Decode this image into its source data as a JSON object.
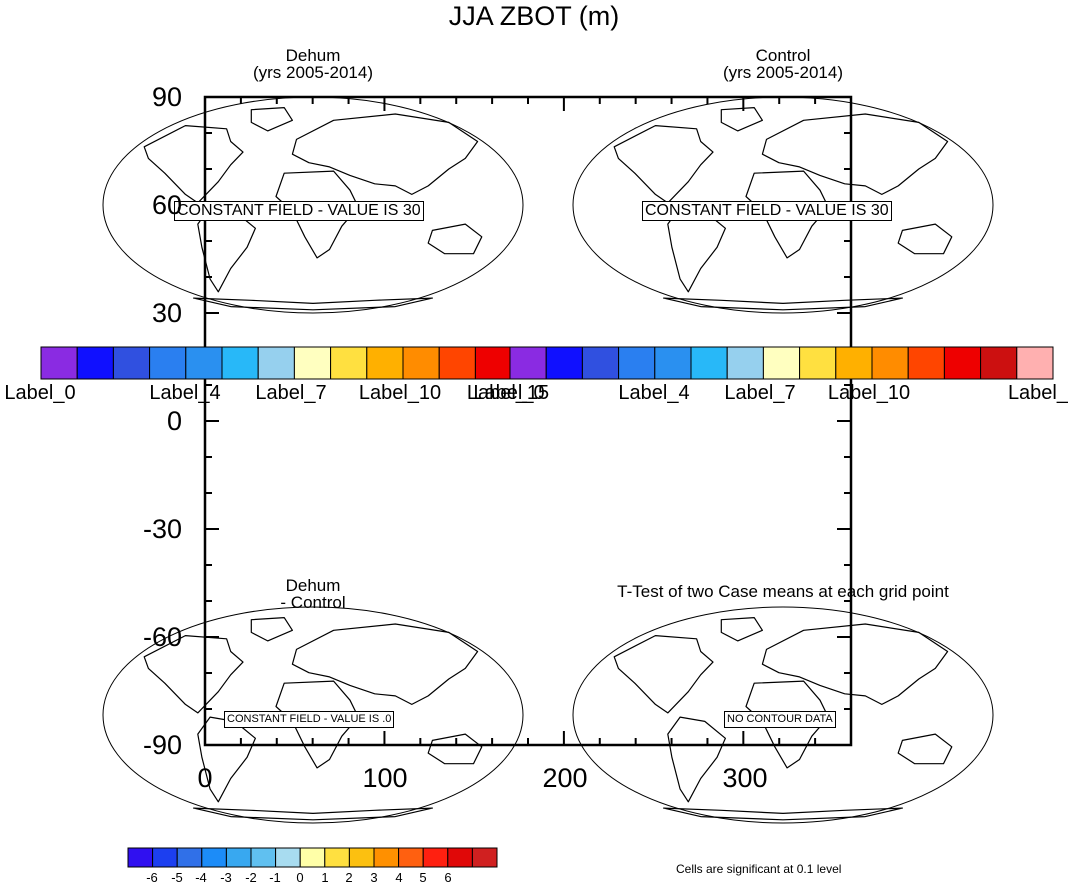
{
  "title": "JJA ZBOT (m)",
  "panels": [
    {
      "id": "dehum",
      "title_line1": "Dehum",
      "title_line2": "(yrs 2005-2014)",
      "message": "CONSTANT FIELD - VALUE IS 30",
      "cx": 313,
      "cy": 205
    },
    {
      "id": "control",
      "title_line1": "Control",
      "title_line2": "(yrs 2005-2014)",
      "message": "CONSTANT FIELD - VALUE IS 30",
      "cx": 783,
      "cy": 205
    },
    {
      "id": "difference",
      "title_line1": "Dehum",
      "title_line2": "- Control",
      "message": "CONSTANT FIELD - VALUE IS .0",
      "cx": 313,
      "cy": 715
    },
    {
      "id": "ttest",
      "title_line1": "T-Test of two Case means at each grid point",
      "title_line2": "",
      "message": "NO CONTOUR DATA",
      "cx": 783,
      "cy": 715
    }
  ],
  "chart_data": {
    "type": "map",
    "overlay_axes": {
      "x_ticks": [
        0,
        100,
        200,
        300
      ],
      "y_ticks": [
        90,
        60,
        30,
        0,
        -30,
        -60,
        -90
      ],
      "xlim": [
        0,
        360
      ],
      "ylim": [
        -90,
        90
      ]
    }
  },
  "colorbar_top": {
    "colors": [
      "#8a2be2",
      "#1010ff",
      "#3050e0",
      "#2a7ff0",
      "#2a90f0",
      "#28b8f8",
      "#96d0ee",
      "#ffffc0",
      "#ffe040",
      "#ffb000",
      "#ff8c00",
      "#ff4500",
      "#ee0000",
      "#cc1010",
      "#ffb0b0"
    ],
    "left_labels": [
      {
        "text": "Label_0",
        "x": 40
      },
      {
        "text": "Label_4",
        "x": 185
      },
      {
        "text": "Label_7",
        "x": 291
      },
      {
        "text": "Label_10",
        "x": 400
      },
      {
        "text": "Label_15",
        "x": 508
      }
    ],
    "right_labels": [
      {
        "text": "Label_0",
        "x": 509
      },
      {
        "text": "Label_4",
        "x": 654
      },
      {
        "text": "Label_7",
        "x": 760
      },
      {
        "text": "Label_10",
        "x": 869
      },
      {
        "text": "Label_",
        "x": 1048
      }
    ]
  },
  "colorbar_bottom": {
    "colors": [
      "#3010f0",
      "#1c3ff0",
      "#3070e8",
      "#1c8cf8",
      "#38a8f0",
      "#60c0f0",
      "#a8dcf0",
      "#ffffa8",
      "#ffe040",
      "#fcc010",
      "#ff9000",
      "#ff6010",
      "#ff2010",
      "#e00808",
      "#d02020"
    ],
    "labels": [
      "-6",
      "-5",
      "-4",
      "-3",
      "-2",
      "-1",
      "0",
      "1",
      "2",
      "3",
      "4",
      "5",
      "6"
    ]
  },
  "significance_note": "Cells are significant at 0.1 level"
}
